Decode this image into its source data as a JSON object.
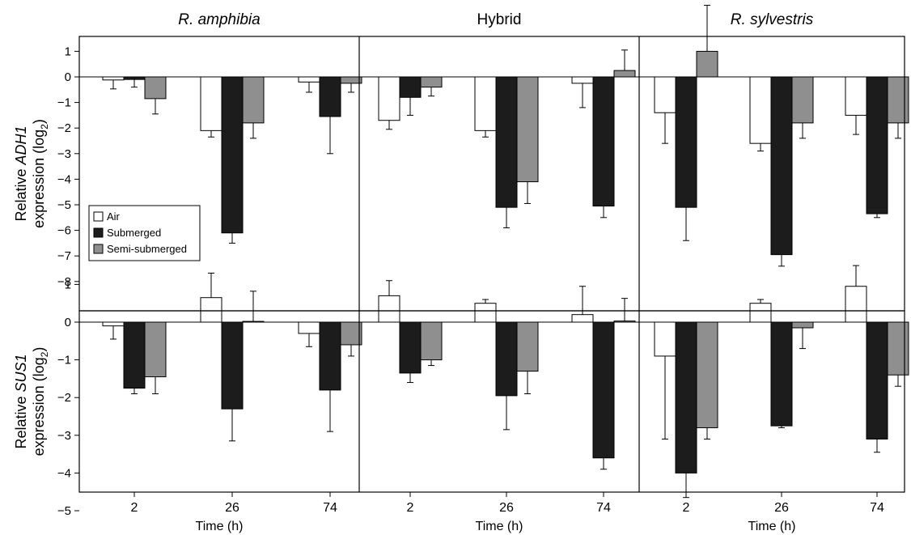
{
  "colors": {
    "Air": "#ffffff",
    "Submerged": "#1c1c1c",
    "Semi-submerged": "#8f8f8f",
    "stroke": "#000000"
  },
  "legend": {
    "placement": "bottom-left of first panel",
    "entries": [
      "Air",
      "Submerged",
      "Semi-submerged"
    ]
  },
  "chart_data": [
    {
      "type": "bar",
      "panel": "ADH1 - R. amphibia",
      "title": "R. amphibia",
      "title_italic": true,
      "ylabel_line1": "Relative ADH1",
      "ylabel_line2": "expression (log2)",
      "ylim": [
        -8.3,
        1.6
      ],
      "yticks": [
        1,
        0,
        -1,
        -2,
        -3,
        -4,
        -5,
        -6,
        -7,
        -8
      ],
      "categories": [
        "2",
        "26",
        "74"
      ],
      "series": [
        {
          "name": "Air",
          "values": [
            -0.12,
            -2.1,
            -0.2
          ],
          "errors": [
            0.35,
            0.25,
            0.4
          ]
        },
        {
          "name": "Submerged",
          "values": [
            -0.1,
            -6.1,
            -1.55
          ],
          "errors": [
            0.3,
            0.4,
            1.45
          ]
        },
        {
          "name": "Semi-submerged",
          "values": [
            -0.85,
            -1.8,
            -0.25
          ],
          "errors": [
            0.6,
            0.6,
            0.35
          ]
        }
      ]
    },
    {
      "type": "bar",
      "panel": "ADH1 - Hybrid",
      "title": "Hybrid",
      "title_italic": false,
      "ylim": [
        -8.3,
        1.6
      ],
      "categories": [
        "2",
        "26",
        "74"
      ],
      "series": [
        {
          "name": "Air",
          "values": [
            -1.7,
            -2.1,
            -0.25
          ],
          "errors": [
            0.35,
            0.25,
            0.95
          ]
        },
        {
          "name": "Submerged",
          "values": [
            -0.8,
            -5.1,
            -5.05
          ],
          "errors": [
            0.7,
            0.8,
            0.45
          ]
        },
        {
          "name": "Semi-submerged",
          "values": [
            -0.4,
            -4.1,
            0.25
          ],
          "errors": [
            0.35,
            0.85,
            0.8
          ]
        }
      ]
    },
    {
      "type": "bar",
      "panel": "ADH1 - R. sylvestris",
      "title": "R. sylvestris",
      "title_italic": true,
      "ylim": [
        -8.3,
        1.6
      ],
      "categories": [
        "2",
        "26",
        "74"
      ],
      "series": [
        {
          "name": "Air",
          "values": [
            -1.4,
            -2.6,
            -1.5
          ],
          "errors": [
            1.2,
            0.3,
            0.75
          ]
        },
        {
          "name": "Submerged",
          "values": [
            -5.1,
            -6.95,
            -5.35
          ],
          "errors": [
            1.3,
            0.45,
            0.15
          ]
        },
        {
          "name": "Semi-submerged",
          "values": [
            1.0,
            -1.8,
            -1.8
          ],
          "errors": [
            1.8,
            0.6,
            0.6
          ]
        }
      ]
    },
    {
      "type": "bar",
      "panel": "SUS1 - R. amphibia",
      "ylabel_line1": "Relative SUS1",
      "ylabel_line2": "expression (log2)",
      "xlabel": "Time (h)",
      "ylim": [
        -5,
        1.3
      ],
      "yticks": [
        1,
        0,
        -1,
        -2,
        -3,
        -4,
        -5
      ],
      "categories": [
        "2",
        "26",
        "74"
      ],
      "series": [
        {
          "name": "Air",
          "values": [
            -0.1,
            0.65,
            -0.3
          ],
          "errors": [
            0.35,
            0.65,
            0.35
          ]
        },
        {
          "name": "Submerged",
          "values": [
            -1.75,
            -2.3,
            -1.8
          ],
          "errors": [
            0.15,
            0.85,
            1.1
          ]
        },
        {
          "name": "Semi-submerged",
          "values": [
            -1.45,
            0.02,
            -0.6
          ],
          "errors": [
            0.45,
            0.8,
            0.3
          ]
        }
      ]
    },
    {
      "type": "bar",
      "panel": "SUS1 - Hybrid",
      "xlabel": "Time (h)",
      "ylim": [
        -5,
        1.3
      ],
      "categories": [
        "2",
        "26",
        "74"
      ],
      "series": [
        {
          "name": "Air",
          "values": [
            0.7,
            0.5,
            0.2
          ],
          "errors": [
            0.4,
            0.1,
            0.75
          ]
        },
        {
          "name": "Submerged",
          "values": [
            -1.35,
            -1.95,
            -3.6
          ],
          "errors": [
            0.25,
            0.9,
            0.3
          ]
        },
        {
          "name": "Semi-submerged",
          "values": [
            -1.0,
            -1.3,
            0.03
          ],
          "errors": [
            0.15,
            0.6,
            0.6
          ]
        }
      ]
    },
    {
      "type": "bar",
      "panel": "SUS1 - R. sylvestris",
      "xlabel": "Time (h)",
      "ylim": [
        -5,
        1.3
      ],
      "categories": [
        "2",
        "26",
        "74"
      ],
      "series": [
        {
          "name": "Air",
          "values": [
            -0.9,
            0.5,
            0.95
          ],
          "errors": [
            2.2,
            0.1,
            0.55
          ]
        },
        {
          "name": "Submerged",
          "values": [
            -4.0,
            -2.75,
            -3.1
          ],
          "errors": [
            0.65,
            0.05,
            0.35
          ]
        },
        {
          "name": "Semi-submerged",
          "values": [
            -2.8,
            -0.15,
            -1.4
          ],
          "errors": [
            0.3,
            0.55,
            0.3
          ]
        }
      ]
    }
  ]
}
